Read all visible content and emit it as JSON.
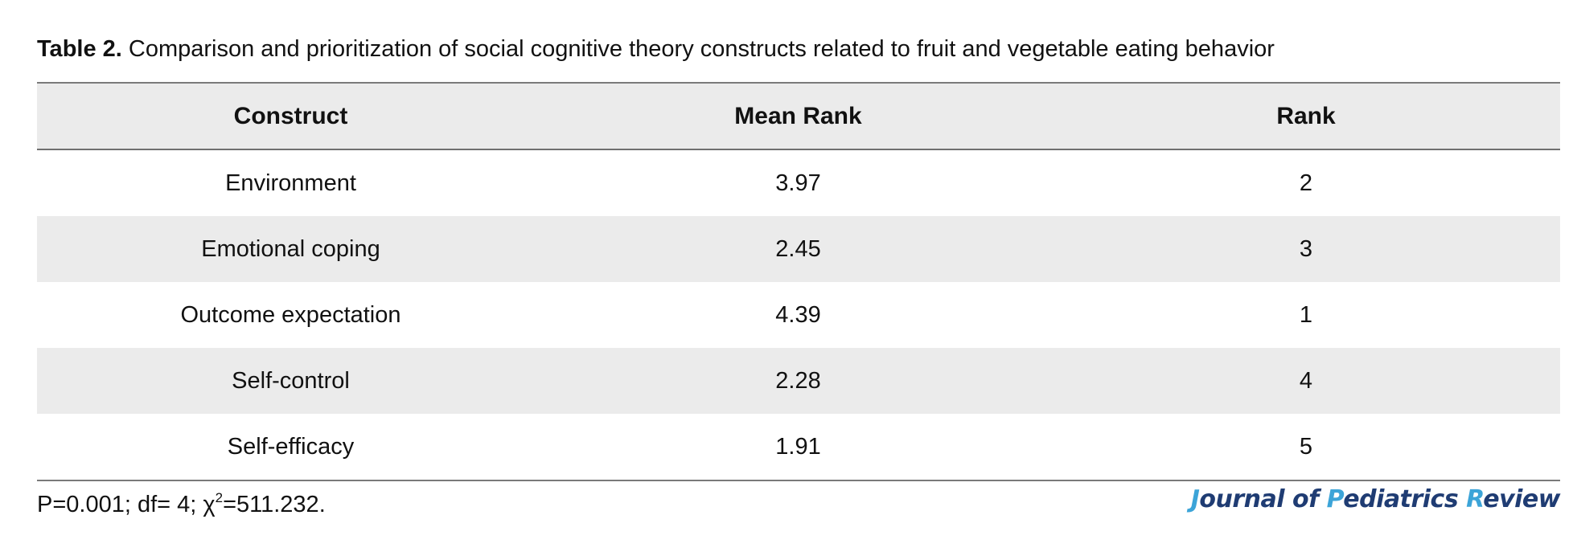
{
  "caption": {
    "label": "Table 2.",
    "text": " Comparison and prioritization of social cognitive theory constructs related to fruit and vegetable eating behavior"
  },
  "table": {
    "headers": [
      "Construct",
      "Mean Rank",
      "Rank"
    ],
    "rows": [
      [
        "Environment",
        "3.97",
        "2"
      ],
      [
        "Emotional coping",
        "2.45",
        "3"
      ],
      [
        "Outcome expectation",
        "4.39",
        "1"
      ],
      [
        "Self-control",
        "2.28",
        "4"
      ],
      [
        "Self-efficacy",
        "1.91",
        "5"
      ]
    ]
  },
  "footnote": {
    "before_sup": "P=0.001; df= 4; χ",
    "sup": "2",
    "after_sup": "=511.232."
  },
  "logo": {
    "text": "Journal of Pediatrics Review",
    "parts": [
      {
        "t": "J",
        "accent": true
      },
      {
        "t": "ournal of ",
        "accent": false
      },
      {
        "t": "P",
        "accent": true
      },
      {
        "t": "ediatrics ",
        "accent": false
      },
      {
        "t": "R",
        "accent": true
      },
      {
        "t": "eview",
        "accent": false
      }
    ],
    "colors": {
      "main": "#1f3c73",
      "accent": "#3ca4d8"
    }
  },
  "colors": {
    "row_shade": "#ebebeb",
    "rule": "#7a7a7a"
  }
}
